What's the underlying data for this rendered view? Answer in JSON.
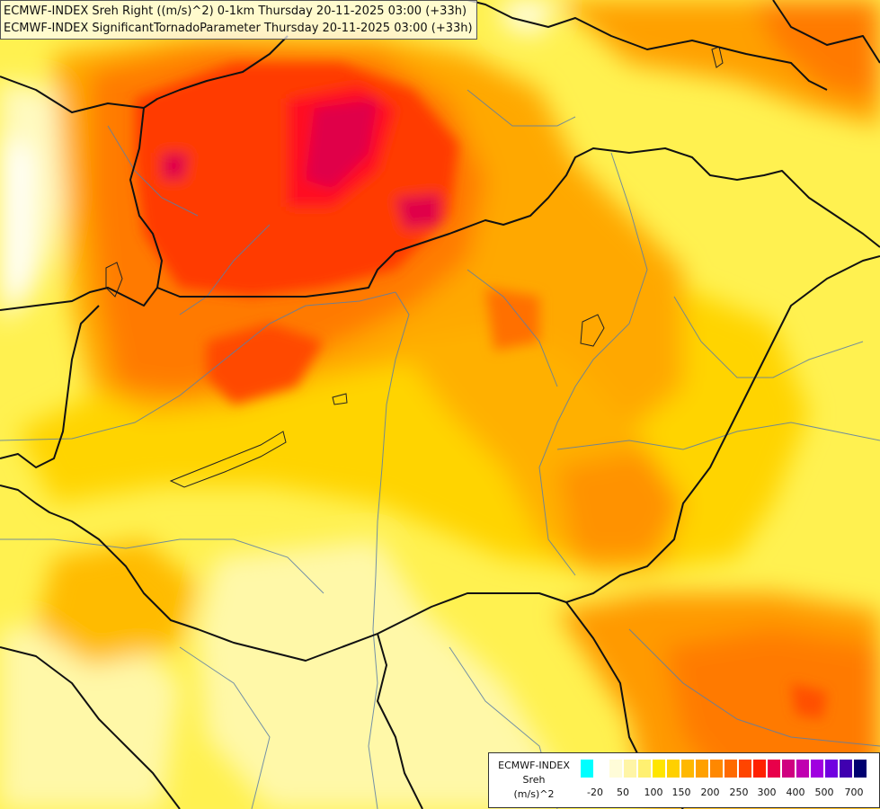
{
  "titles": [
    "ECMWF-INDEX Sreh Right ((m/s)^2) 0-1km Thursday 20-11-2025 03:00 (+33h)",
    "ECMWF-INDEX SignificantTornadoParameter Thursday 20-11-2025 03:00 (+33h)"
  ],
  "legend": {
    "name_lines": [
      "ECMWF-INDEX",
      "Sreh",
      "(m/s)^2"
    ],
    "colors": [
      "#00ffff",
      "#ffffff",
      "#fffcd8",
      "#fff5a6",
      "#fff071",
      "#ffe500",
      "#ffd000",
      "#ffb800",
      "#ffa000",
      "#ff8800",
      "#ff6a00",
      "#ff4500",
      "#ff2000",
      "#e8004a",
      "#d00080",
      "#c000b0",
      "#a000e0",
      "#7000e0",
      "#4000b0",
      "#000070"
    ],
    "ticks": [
      "-20",
      "50",
      "100",
      "150",
      "200",
      "250",
      "300",
      "400",
      "500",
      "700"
    ]
  }
}
